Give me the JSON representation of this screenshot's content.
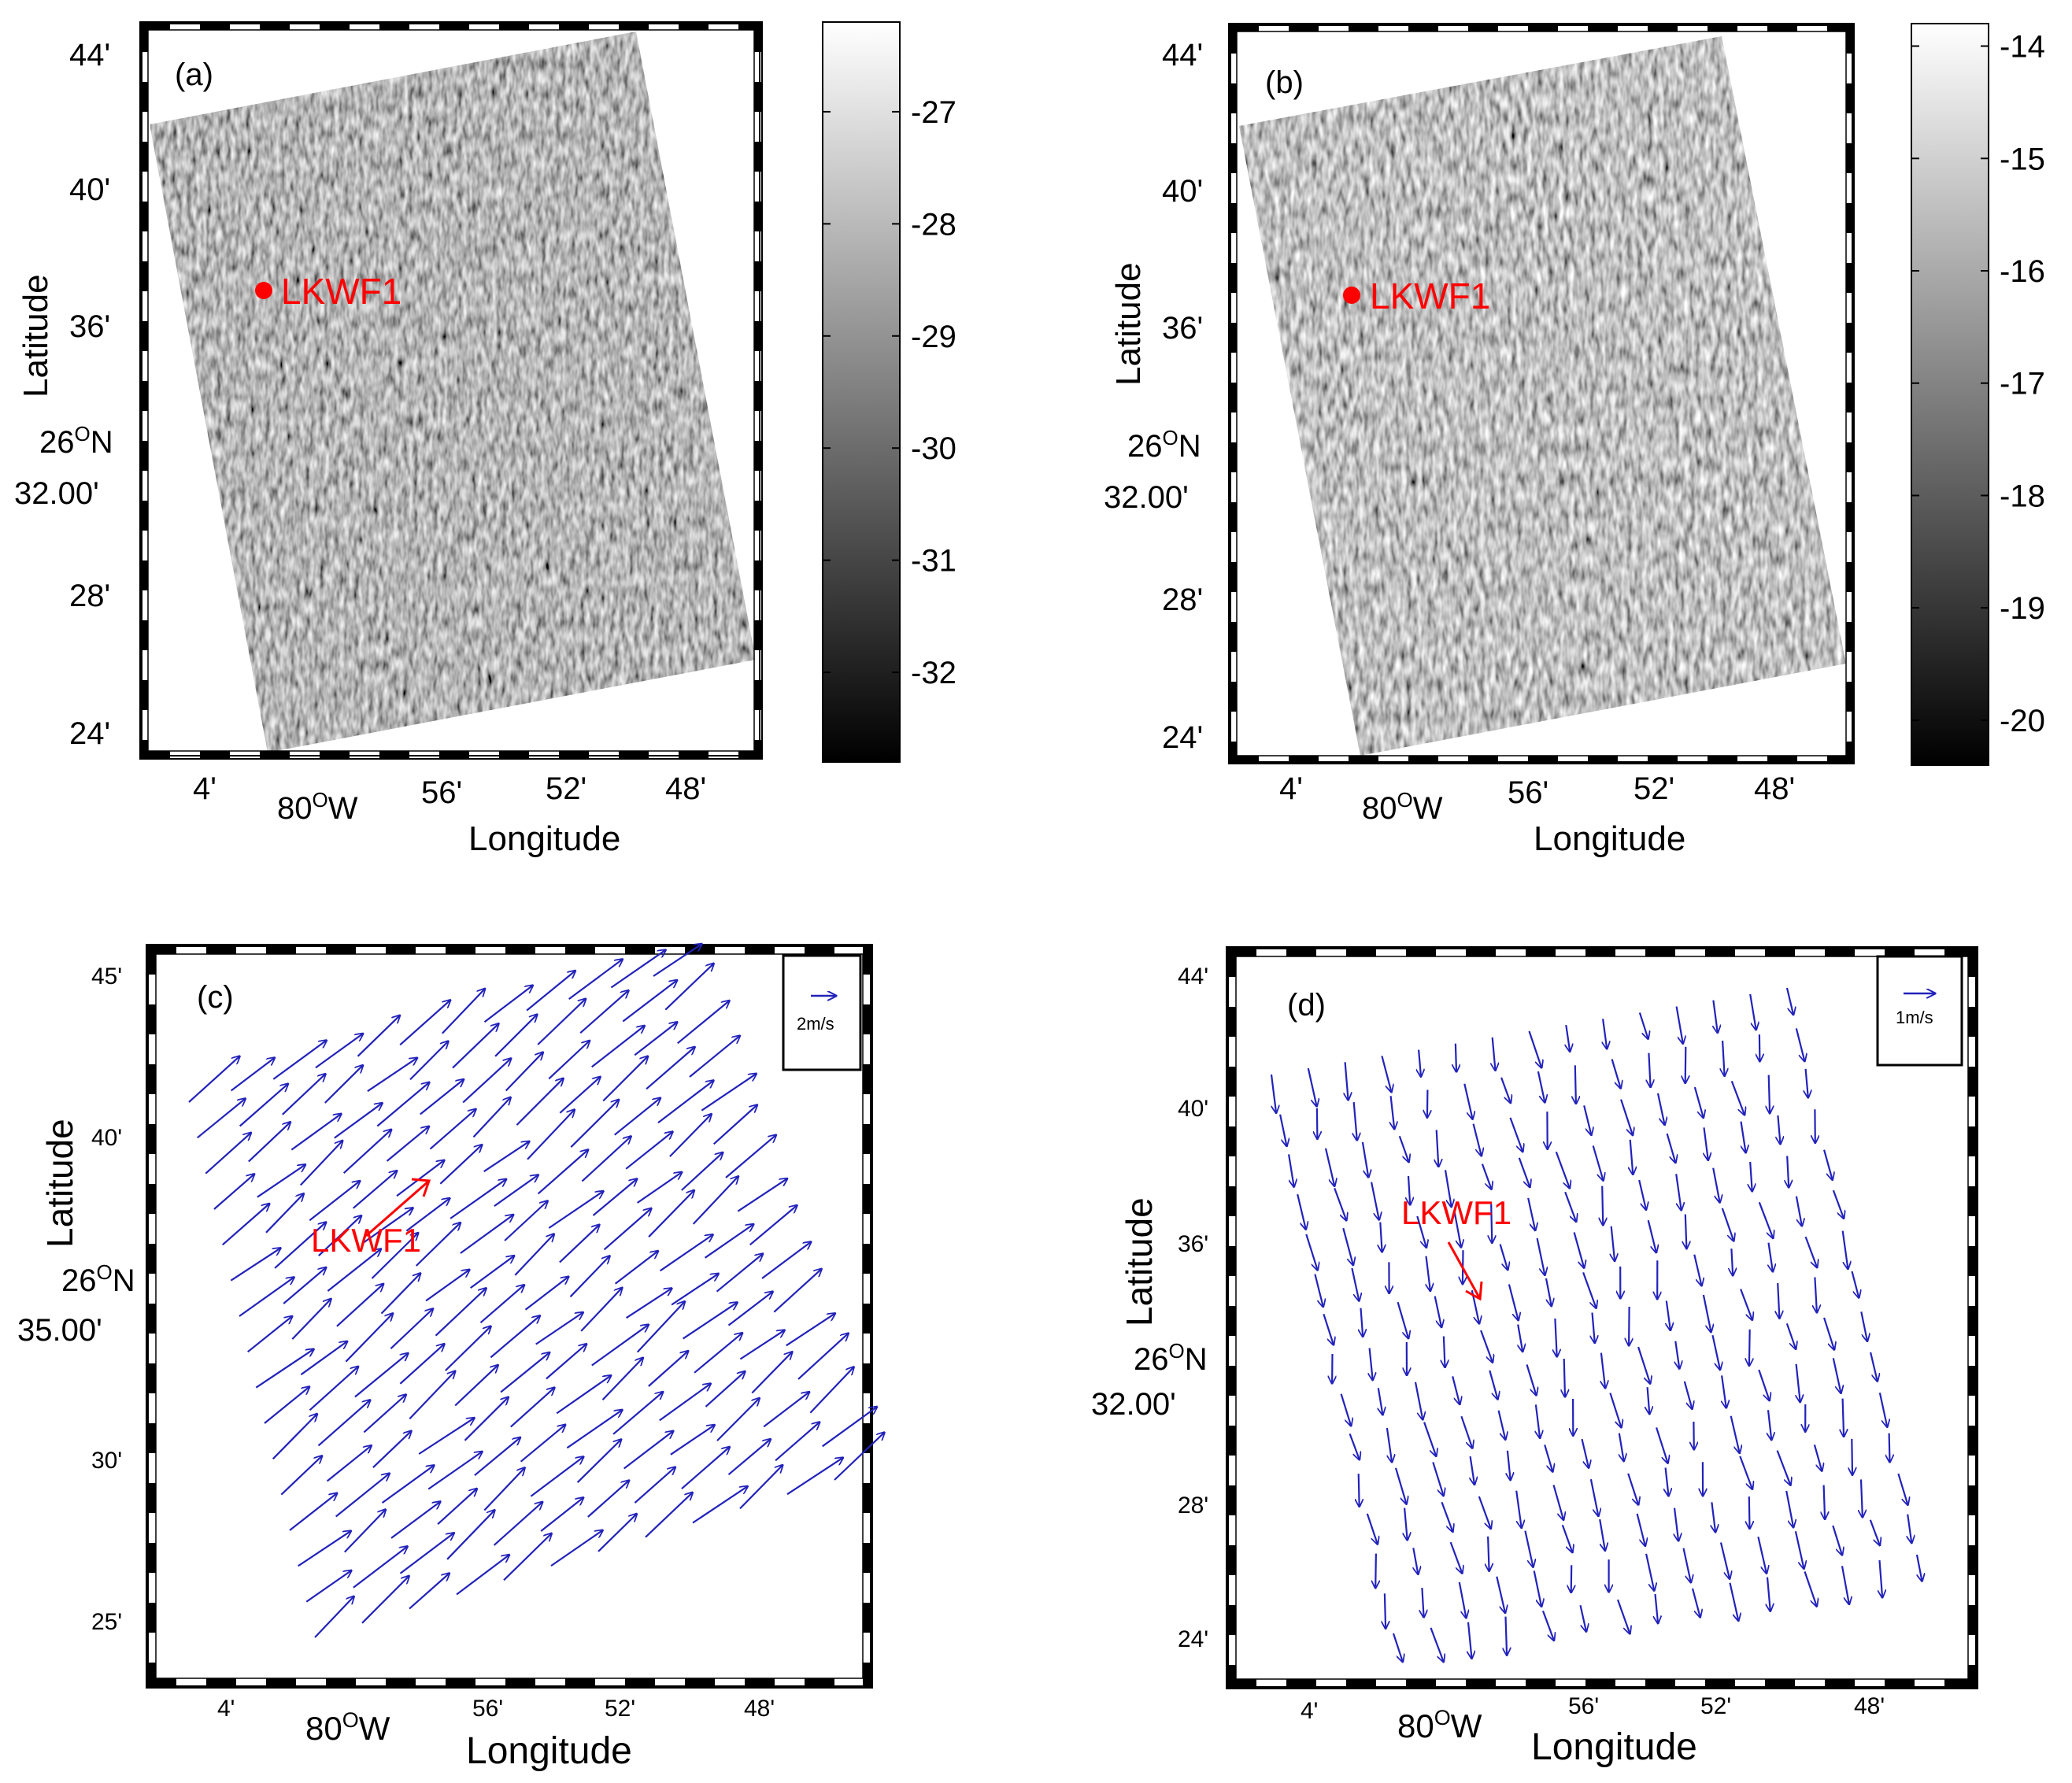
{
  "figure": {
    "description_panels": [
      "a",
      "b",
      "c",
      "d"
    ]
  },
  "chart_data": [
    {
      "panel": "a",
      "type": "heatmap",
      "label": "(a)",
      "xlabel": "Longitude",
      "ylabel": "Latitude",
      "x_ticks": [
        "4'",
        "80°W",
        "56'",
        "52'",
        "48'"
      ],
      "y_ticks": [
        "44'",
        "40'",
        "36'",
        "26°N 32.00'",
        "28'",
        "24'"
      ],
      "y_tick_main": {
        "deg": "26",
        "unit": "O",
        "hem": "N",
        "min": "32.00'"
      },
      "x_tick_main": {
        "deg": "80",
        "unit": "O",
        "hem": "W"
      },
      "colorbar": {
        "ticks": [
          "-27",
          "-28",
          "-29",
          "-30",
          "-31",
          "-32"
        ],
        "range": [
          -32.8,
          -26.2
        ],
        "colormap": "gray"
      },
      "marker": {
        "label": "LKWF1",
        "color": "#ff0000"
      }
    },
    {
      "panel": "b",
      "type": "heatmap",
      "label": "(b)",
      "xlabel": "Longitude",
      "ylabel": "Latitude",
      "x_ticks": [
        "4'",
        "80°W",
        "56'",
        "52'",
        "48'"
      ],
      "y_ticks": [
        "44'",
        "40'",
        "36'",
        "26°N 32.00'",
        "28'",
        "24'"
      ],
      "y_tick_main": {
        "deg": "26",
        "unit": "O",
        "hem": "N",
        "min": "32.00'"
      },
      "x_tick_main": {
        "deg": "80",
        "unit": "O",
        "hem": "W"
      },
      "colorbar": {
        "ticks": [
          "-14",
          "-15",
          "-16",
          "-17",
          "-18",
          "-19",
          "-20"
        ],
        "range": [
          -20.4,
          -13.8
        ],
        "colormap": "gray"
      },
      "marker": {
        "label": "LKWF1",
        "color": "#ff0000"
      }
    },
    {
      "panel": "c",
      "type": "quiver",
      "label": "(c)",
      "xlabel": "Longitude",
      "ylabel": "Latitude",
      "x_ticks": [
        "4'",
        "80°W",
        "56'",
        "52'",
        "48'"
      ],
      "y_ticks": [
        "45'",
        "40'",
        "26°N 35.00'",
        "30'",
        "25'"
      ],
      "y_tick_main": {
        "deg": "26",
        "unit": "O",
        "hem": "N",
        "min": "35.00'"
      },
      "x_tick_main": {
        "deg": "80",
        "unit": "O",
        "hem": "W"
      },
      "legend": {
        "label": "2m/s",
        "color": "#2020c0"
      },
      "vector_field": {
        "mean_direction_deg": 40,
        "mean_speed_ms": 7,
        "arrow_color": "#2222bb",
        "rows": 16,
        "cols": 12
      },
      "buoy": {
        "label": "LKWF1",
        "direction_deg": 35,
        "color": "#ff0000"
      }
    },
    {
      "panel": "d",
      "type": "quiver",
      "label": "(d)",
      "xlabel": "Longitude",
      "ylabel": "Latitude",
      "x_ticks": [
        "4'",
        "80°W",
        "56'",
        "52'",
        "48'"
      ],
      "y_ticks": [
        "44'",
        "40'",
        "36'",
        "26°N 32.00'",
        "28'",
        "24'"
      ],
      "y_tick_main": {
        "deg": "26",
        "unit": "O",
        "hem": "N",
        "min": "32.00'"
      },
      "x_tick_main": {
        "deg": "80",
        "unit": "O",
        "hem": "W"
      },
      "legend": {
        "label": "1m/s",
        "color": "#2020c0"
      },
      "vector_field": {
        "mean_direction_deg": -80,
        "mean_speed_ms": 2,
        "arrow_color": "#2222bb",
        "rows": 15,
        "cols": 15
      },
      "buoy": {
        "label": "LKWF1",
        "direction_deg": -62,
        "color": "#ff0000"
      }
    }
  ]
}
